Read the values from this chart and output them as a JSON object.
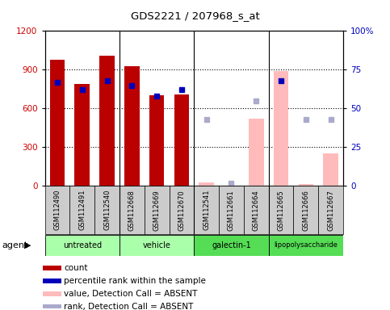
{
  "title": "GDS2221 / 207968_s_at",
  "samples": [
    "GSM112490",
    "GSM112491",
    "GSM112540",
    "GSM112668",
    "GSM112669",
    "GSM112670",
    "GSM112541",
    "GSM112661",
    "GSM112664",
    "GSM112665",
    "GSM112666",
    "GSM112667"
  ],
  "bar_values": [
    975,
    790,
    1010,
    930,
    700,
    710,
    30,
    5,
    520,
    890,
    15,
    250
  ],
  "bar_colors": [
    "#bb0000",
    "#bb0000",
    "#bb0000",
    "#bb0000",
    "#bb0000",
    "#bb0000",
    "#ffbbbb",
    "#ffbbbb",
    "#ffbbbb",
    "#ffbbbb",
    "#ffbbbb",
    "#ffbbbb"
  ],
  "percentile_rank_present": [
    67,
    62,
    68,
    65,
    58,
    62,
    null,
    null,
    null,
    68,
    null,
    null
  ],
  "percentile_rank_absent": [
    null,
    null,
    null,
    null,
    null,
    null,
    43,
    2,
    55,
    null,
    43,
    43
  ],
  "ylim_left": [
    0,
    1200
  ],
  "ylim_right": [
    0,
    100
  ],
  "yticks_left": [
    0,
    300,
    600,
    900,
    1200
  ],
  "yticks_right": [
    0,
    25,
    50,
    75,
    100
  ],
  "group_dividers": [
    3,
    6,
    9
  ],
  "group_names": [
    "untreated",
    "vehicle",
    "galectin-1",
    "lipopolysaccharide"
  ],
  "group_colors": [
    "#aaffaa",
    "#aaffaa",
    "#55dd55",
    "#55dd55"
  ],
  "left_axis_color": "#cc0000",
  "right_axis_color": "#0000bb",
  "legend_labels": [
    "count",
    "percentile rank within the sample",
    "value, Detection Call = ABSENT",
    "rank, Detection Call = ABSENT"
  ],
  "legend_colors": [
    "#bb0000",
    "#0000bb",
    "#ffbbbb",
    "#aaaacc"
  ]
}
